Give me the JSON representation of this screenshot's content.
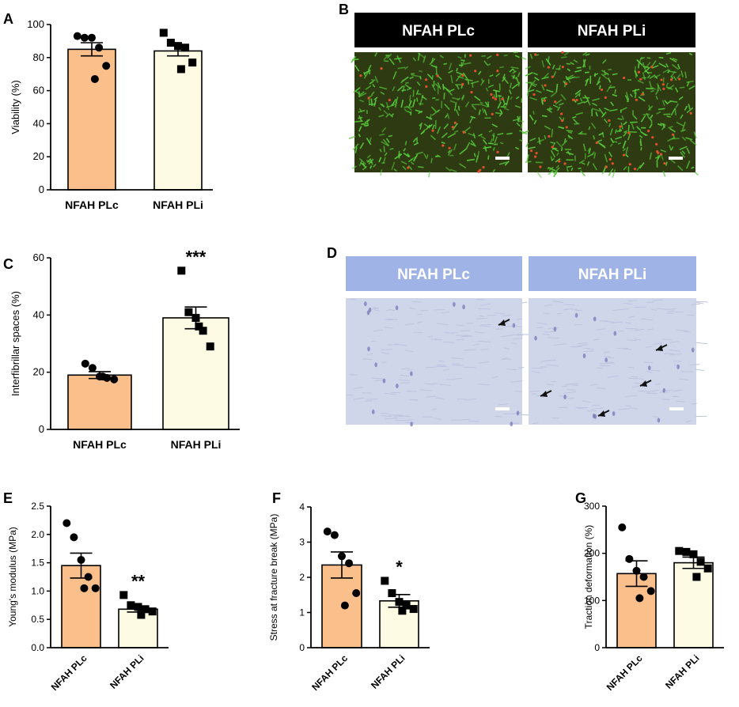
{
  "panels": {
    "B": {
      "label": "B",
      "banners": [
        "NFAH PLc",
        "NFAH PLi"
      ],
      "banner_bg": "#000000",
      "image_colors": {
        "base": "#2e3a12",
        "green": "#56c93a",
        "red": "#e0502c"
      }
    },
    "D": {
      "label": "D",
      "banners": [
        "NFAH PLc",
        "NFAH PLi"
      ],
      "banner_bg": "#9fb3e6",
      "image_colors": {
        "base": "#cfd6ea",
        "stain": "#6f72b0"
      }
    }
  },
  "colors": {
    "plc": "#fbbf8c",
    "pli": "#fdfbe3",
    "marker": "#000000"
  },
  "chart_data": [
    {
      "id": "A",
      "panel_label": "A",
      "type": "bar",
      "categories": [
        "NFAH PLc",
        "NFAH PLi"
      ],
      "values": [
        85,
        84
      ],
      "sem": [
        4,
        3
      ],
      "points": [
        [
          93,
          92,
          92,
          86,
          75,
          67
        ],
        [
          95,
          89,
          87,
          86,
          77,
          73
        ]
      ],
      "ylabel": "Viability  (%)",
      "ylim": [
        0,
        100
      ],
      "yticks": [
        "0",
        "20",
        "40",
        "60",
        "80",
        "100"
      ],
      "significance": [
        "",
        ""
      ],
      "tick_rotation": 0
    },
    {
      "id": "C",
      "panel_label": "C",
      "type": "bar",
      "categories": [
        "NFAH PLc",
        "NFAH PLi"
      ],
      "values": [
        19,
        39
      ],
      "sem": [
        1.2,
        3.8
      ],
      "points": [
        [
          23,
          21.5,
          18.5,
          18,
          17.5,
          18.5
        ],
        [
          55.5,
          41,
          39,
          34.5,
          29,
          36
        ]
      ],
      "ylabel": "Interfibrillar spaces (%)",
      "ylim": [
        0,
        60
      ],
      "yticks": [
        "0",
        "20",
        "40",
        "60"
      ],
      "significance": [
        "",
        "***"
      ],
      "tick_rotation": 0
    },
    {
      "id": "E",
      "panel_label": "E",
      "type": "bar",
      "categories": [
        "NFAH PLc",
        "NFAH PLi"
      ],
      "values": [
        1.45,
        0.68
      ],
      "sem": [
        0.22,
        0.05
      ],
      "points": [
        [
          2.2,
          1.95,
          1.55,
          1.25,
          1.05,
          1.05
        ],
        [
          0.93,
          0.75,
          0.72,
          0.68,
          0.64,
          0.58
        ]
      ],
      "ylabel": "Young's modulus (MPa)",
      "ylim": [
        0,
        2.5
      ],
      "yticks": [
        "0.0",
        "0.5",
        "1.0",
        "1.5",
        "2.0",
        "2.5"
      ],
      "significance": [
        "",
        "**"
      ],
      "tick_rotation": -45
    },
    {
      "id": "F",
      "panel_label": "F",
      "type": "bar",
      "categories": [
        "NFAH PLc",
        "NFAH PLi"
      ],
      "values": [
        2.35,
        1.33
      ],
      "sem": [
        0.37,
        0.18
      ],
      "points": [
        [
          3.3,
          3.2,
          2.6,
          2.4,
          1.55,
          1.2
        ],
        [
          1.9,
          1.55,
          1.3,
          1.2,
          1.1,
          1.05
        ]
      ],
      "ylabel": "Stress at fracture break (MPa)",
      "ylim": [
        0,
        4
      ],
      "yticks": [
        "0",
        "1",
        "2",
        "3",
        "4"
      ],
      "significance": [
        "",
        "*"
      ],
      "tick_rotation": -45
    },
    {
      "id": "G",
      "panel_label": "G",
      "type": "bar",
      "categories": [
        "NFAH PLc",
        "NFAH PLi"
      ],
      "values": [
        157,
        180
      ],
      "sem": [
        27,
        12
      ],
      "points": [
        [
          255,
          188,
          163,
          150,
          120,
          105
        ],
        [
          205,
          203,
          198,
          182,
          168,
          150
        ]
      ],
      "ylabel": "Traction deformation (%)",
      "ylim": [
        0,
        300
      ],
      "yticks": [
        "0",
        "100",
        "200",
        "300"
      ],
      "significance": [
        "",
        ""
      ],
      "tick_rotation": -45
    }
  ]
}
